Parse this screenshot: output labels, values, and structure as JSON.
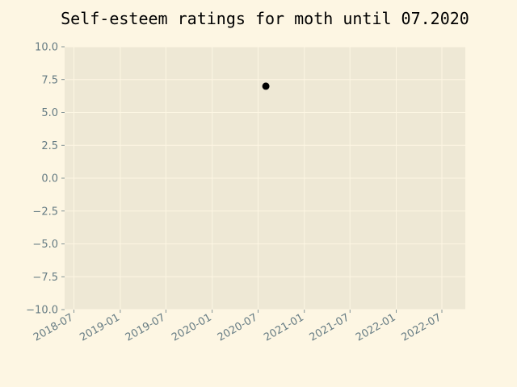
{
  "chart_data": {
    "type": "scatter",
    "title": "Self-esteem ratings for moth until 07.2020",
    "xlabel": "",
    "ylabel": "",
    "x_axis": {
      "kind": "date",
      "range": [
        "2018-05-25",
        "2022-10-02"
      ],
      "ticks": [
        "2018-07",
        "2019-01",
        "2019-07",
        "2020-01",
        "2020-07",
        "2021-01",
        "2021-07",
        "2022-01",
        "2022-07"
      ]
    },
    "y_axis": {
      "range": [
        -10,
        10
      ],
      "ticks": [
        "10.0",
        "7.5",
        "5.0",
        "2.5",
        "0.0",
        "−2.5",
        "−5.0",
        "−7.5",
        "−10.0"
      ],
      "tick_values": [
        10,
        7.5,
        5,
        2.5,
        0,
        -2.5,
        -5,
        -7.5,
        -10
      ]
    },
    "grid": true,
    "points": [
      {
        "x": "2020-08-01",
        "y": 7.0
      }
    ],
    "colors": {
      "figure_background": "#fdf6e3",
      "plot_background": "#eee8d5",
      "grid": "#fdf6e3",
      "tick_labels": "#657b83",
      "marker": "#000000"
    }
  }
}
